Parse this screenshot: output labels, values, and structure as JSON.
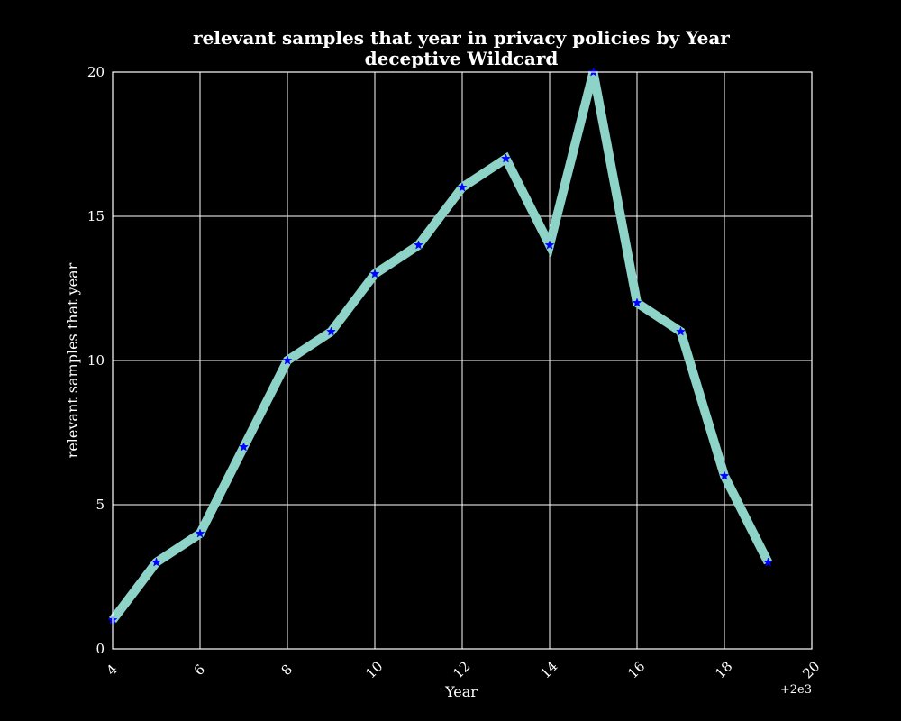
{
  "chart_data": {
    "type": "line",
    "title": [
      "relevant samples that year in privacy policies by Year",
      "deceptive Wildcard"
    ],
    "xlabel": "Year",
    "ylabel": "relevant samples that year",
    "x_offset_label": "+2e3",
    "xlim": [
      4,
      20
    ],
    "ylim": [
      0,
      20
    ],
    "x_ticks": [
      4,
      6,
      8,
      10,
      12,
      14,
      16,
      18,
      20
    ],
    "y_ticks": [
      0,
      5,
      10,
      15,
      20
    ],
    "grid": true,
    "colors": {
      "background": "#000000",
      "line": "#8dd3c7",
      "marker": "#0000ff",
      "grid": "#ffffff",
      "text": "#ffffff"
    },
    "series": [
      {
        "x": [
          4,
          5,
          6,
          7,
          8,
          9,
          10,
          11,
          12,
          13,
          14,
          15,
          16,
          17,
          18,
          19
        ],
        "y": [
          1,
          3,
          4,
          7,
          10,
          11,
          13,
          14,
          16,
          17,
          14,
          20,
          12,
          11,
          6,
          3
        ],
        "marker": "star"
      }
    ]
  }
}
